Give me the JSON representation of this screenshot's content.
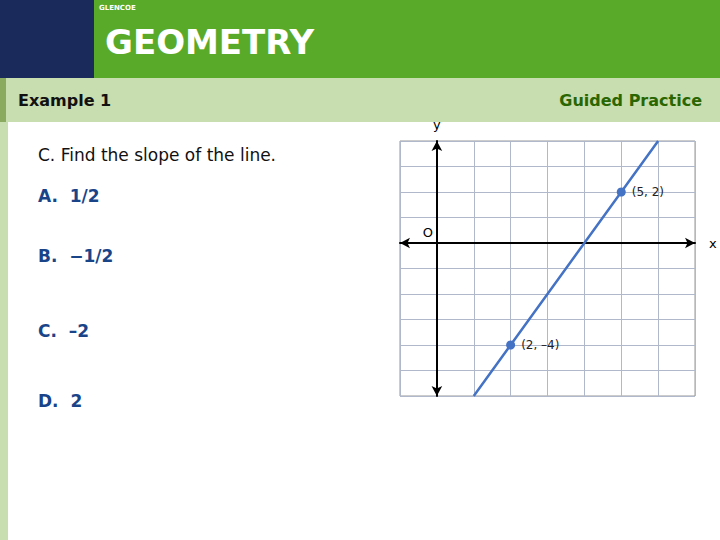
{
  "chart_data": {
    "type": "line",
    "title": "GEOMETRY",
    "annotations": [
      "GLENCOE",
      "Example 1",
      "Guided Practice",
      "C. Find the slope of the line.",
      "A.  1/2",
      "B.  −1/2",
      "C.  –2",
      "D.  2",
      "O"
    ],
    "xlabel": "x",
    "ylabel": "y",
    "x": [
      1,
      2,
      5,
      6
    ],
    "values": [
      -6,
      -4,
      2,
      4
    ],
    "value_labels": [
      null,
      "(2, –4)",
      "(5, 2)",
      null
    ],
    "color": "#4472C4",
    "marker": "circle",
    "xlim": [
      -1,
      7
    ],
    "xticks": [
      -1,
      0,
      1,
      2,
      3,
      4,
      5,
      6,
      7
    ],
    "ylim": [
      -6,
      4
    ],
    "yticks": [
      -6,
      -5,
      -4,
      -3,
      -2,
      -1,
      0,
      1,
      2,
      3,
      4
    ],
    "grid": true,
    "tick_labels": false
  }
}
